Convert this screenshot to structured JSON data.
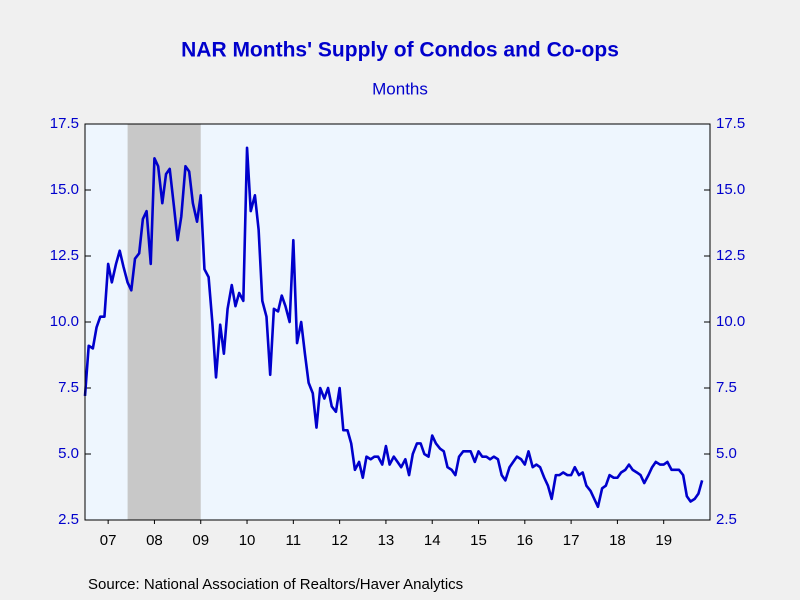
{
  "chart_data": {
    "type": "line",
    "title": "NAR Months' Supply of Condos and Co-ops",
    "subtitle": "Months",
    "source": "Source:  National Association of Realtors/Haver Analytics",
    "x": [
      2007.0,
      2007.08,
      2007.17,
      2007.25,
      2007.33,
      2007.42,
      2007.5,
      2007.58,
      2007.67,
      2007.75,
      2007.83,
      2007.92,
      2008.0,
      2008.08,
      2008.17,
      2008.25,
      2008.33,
      2008.42,
      2008.5,
      2008.58,
      2008.67,
      2008.75,
      2008.83,
      2008.92,
      2009.0,
      2009.08,
      2009.17,
      2009.25,
      2009.33,
      2009.42,
      2009.5,
      2009.58,
      2009.67,
      2009.75,
      2009.83,
      2009.92,
      2010.0,
      2010.08,
      2010.17,
      2010.25,
      2010.33,
      2010.42,
      2010.5,
      2010.58,
      2010.67,
      2010.75,
      2010.83,
      2010.92,
      2011.0,
      2011.08,
      2011.17,
      2011.25,
      2011.33,
      2011.42,
      2011.5,
      2011.58,
      2011.67,
      2011.75,
      2011.83,
      2011.92,
      2012.0,
      2012.08,
      2012.17,
      2012.25,
      2012.33,
      2012.42,
      2012.5,
      2012.58,
      2012.67,
      2012.75,
      2012.83,
      2012.92,
      2013.0,
      2013.08,
      2013.17,
      2013.25,
      2013.33,
      2013.42,
      2013.5,
      2013.58,
      2013.67,
      2013.75,
      2013.83,
      2013.92,
      2014.0,
      2014.08,
      2014.17,
      2014.25,
      2014.33,
      2014.42,
      2014.5,
      2014.58,
      2014.67,
      2014.75,
      2014.83,
      2014.92,
      2015.0,
      2015.08,
      2015.17,
      2015.25,
      2015.33,
      2015.42,
      2015.5,
      2015.58,
      2015.67,
      2015.75,
      2015.83,
      2015.92,
      2016.0,
      2016.08,
      2016.17,
      2016.25,
      2016.33,
      2016.42,
      2016.5,
      2016.58,
      2016.67,
      2016.75,
      2016.83,
      2016.92,
      2017.0,
      2017.08,
      2017.17,
      2017.25,
      2017.33,
      2017.42,
      2017.5,
      2017.58,
      2017.67,
      2017.75,
      2017.83,
      2017.92,
      2018.0,
      2018.08,
      2018.17,
      2018.25,
      2018.33,
      2018.42,
      2018.5,
      2018.58,
      2018.67,
      2018.75,
      2018.83,
      2018.92,
      2019.0,
      2019.08,
      2019.17,
      2019.25,
      2019.33,
      2019.42,
      2019.5,
      2019.58,
      2019.67,
      2019.75,
      2019.83,
      2019.92,
      2020.0,
      2020.08,
      2020.17,
      2020.25,
      2020.33
    ],
    "series": [
      {
        "color": "#0000cc",
        "values": [
          7.2,
          9.1,
          9.0,
          9.8,
          10.2,
          10.2,
          12.2,
          11.5,
          12.2,
          12.7,
          12.1,
          11.5,
          11.2,
          12.4,
          12.6,
          13.9,
          14.2,
          12.2,
          16.2,
          15.9,
          14.5,
          15.6,
          15.8,
          14.4,
          13.1,
          14.0,
          15.9,
          15.7,
          14.5,
          13.8,
          14.8,
          12.0,
          11.7,
          10.0,
          7.9,
          9.9,
          8.8,
          10.5,
          11.4,
          10.6,
          11.1,
          10.8,
          16.6,
          14.2,
          14.8,
          13.5,
          10.8,
          10.2,
          8.0,
          10.5,
          10.4,
          11.0,
          10.6,
          10.0,
          13.1,
          9.2,
          10.0,
          8.8,
          7.7,
          7.3,
          6.0,
          7.5,
          7.1,
          7.5,
          6.8,
          6.6,
          7.5,
          5.9,
          5.9,
          5.4,
          4.4,
          4.7,
          4.1,
          4.9,
          4.8,
          4.9,
          4.9,
          4.6,
          5.3,
          4.6,
          4.9,
          4.7,
          4.5,
          4.8,
          4.2,
          5.0,
          5.4,
          5.4,
          5.0,
          4.9,
          5.7,
          5.4,
          5.2,
          5.1,
          4.5,
          4.4,
          4.2,
          4.9,
          5.1,
          5.1,
          5.1,
          4.7,
          5.1,
          4.9,
          4.9,
          4.8,
          4.9,
          4.8,
          4.2,
          4.0,
          4.5,
          4.7,
          4.9,
          4.8,
          4.6,
          5.1,
          4.5,
          4.6,
          4.5,
          4.1,
          3.8,
          3.3,
          4.2,
          4.2,
          4.3,
          4.2,
          4.2,
          4.5,
          4.2,
          4.3,
          3.8,
          3.6,
          3.3,
          3.0,
          3.7,
          3.8,
          4.2,
          4.1,
          4.1,
          4.3,
          4.4,
          4.6,
          4.4,
          4.3,
          4.2,
          3.9,
          4.2,
          4.5,
          4.7,
          4.6,
          4.6,
          4.7,
          4.4,
          4.4,
          4.4,
          4.2,
          3.4,
          3.2,
          3.3,
          3.5,
          4.0
        ]
      }
    ],
    "recessions": [
      {
        "start": 2007.92,
        "end": 2009.5,
        "color": "#c8c8c8"
      }
    ],
    "xlim": [
      2007,
      2020.5
    ],
    "xticks": [
      {
        "value": 2007.5,
        "label": "07"
      },
      {
        "value": 2008.5,
        "label": "08"
      },
      {
        "value": 2009.5,
        "label": "09"
      },
      {
        "value": 2010.5,
        "label": "10"
      },
      {
        "value": 2011.5,
        "label": "11"
      },
      {
        "value": 2012.5,
        "label": "12"
      },
      {
        "value": 2013.5,
        "label": "13"
      },
      {
        "value": 2014.5,
        "label": "14"
      },
      {
        "value": 2015.5,
        "label": "15"
      },
      {
        "value": 2016.5,
        "label": "16"
      },
      {
        "value": 2017.5,
        "label": "17"
      },
      {
        "value": 2018.5,
        "label": "18"
      },
      {
        "value": 2019.5,
        "label": "19"
      }
    ],
    "ylim": [
      2.5,
      17.5
    ],
    "yticks": [
      2.5,
      {
        "value": 5,
        "label": "5.0"
      },
      7.5,
      {
        "value": 10,
        "label": "10.0"
      },
      12.5,
      {
        "value": 15,
        "label": "15.0"
      },
      17.5
    ],
    "right_axis": true
  }
}
